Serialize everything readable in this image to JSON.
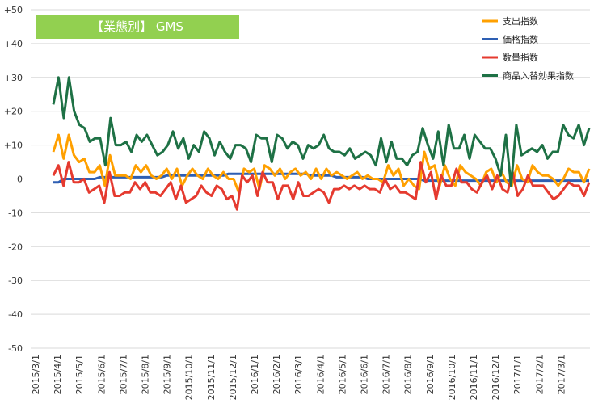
{
  "chart_data": {
    "type": "line",
    "title": "【業態別】 GMS",
    "ylim": [
      -50,
      50
    ],
    "y_ticks": [
      50,
      40,
      30,
      20,
      10,
      0,
      -10,
      -20,
      -30,
      -40,
      -50
    ],
    "y_tick_labels": [
      "+50",
      "+40",
      "+30",
      "+20",
      "+10",
      "0",
      "-10",
      "-20",
      "-30",
      "-40",
      "-50"
    ],
    "x_tick_labels": [
      "2015/3/1",
      "2015/4/1",
      "2015/5/1",
      "2015/6/1",
      "2015/7/1",
      "2015/8/1",
      "2015/9/1",
      "2015/10/1",
      "2015/11/1",
      "2015/12/1",
      "2016/1/1",
      "2016/2/1",
      "2016/3/1",
      "2016/4/1",
      "2016/5/1",
      "2016/6/1",
      "2016/7/1",
      "2016/8/1",
      "2016/9/1",
      "2016/10/1",
      "2016/11/1",
      "2016/12/1",
      "2017/1/1",
      "2017/2/1",
      "2017/3/1"
    ],
    "grid": true,
    "legend_position": "top-right",
    "series": [
      {
        "name": "支出指数",
        "color": "#ffa000",
        "values": [
          8,
          13,
          6,
          13,
          7,
          5,
          6,
          2,
          2,
          4,
          -2,
          7,
          1,
          1,
          1,
          0,
          4,
          2,
          4,
          1,
          0,
          1,
          3,
          0,
          3,
          -2,
          1,
          3,
          1,
          0,
          3,
          1,
          0,
          2,
          0,
          0,
          -4,
          3,
          2,
          3,
          -3,
          4,
          3,
          1,
          3,
          0,
          2,
          3,
          1,
          2,
          0,
          3,
          0,
          3,
          1,
          2,
          1,
          0,
          1,
          2,
          0,
          1,
          0,
          0,
          -1,
          4,
          1,
          3,
          -2,
          0,
          -2,
          -3,
          8,
          3,
          4,
          -2,
          4,
          0,
          -2,
          4,
          2,
          1,
          0,
          -2,
          2,
          3,
          -1,
          2,
          -1,
          -2,
          4,
          0,
          -1,
          4,
          2,
          1,
          1,
          0,
          -2,
          0,
          3,
          2,
          2,
          -1,
          3
        ]
      },
      {
        "name": "価格指数",
        "color": "#2e5fb3",
        "values": [
          -1,
          -1,
          0,
          0,
          0,
          0,
          0,
          0,
          0,
          0.5,
          0.5,
          0.5,
          0.5,
          0.5,
          0.5,
          0.5,
          0.5,
          0.5,
          0.5,
          0.5,
          0.5,
          0.5,
          1,
          1,
          1,
          1,
          1,
          1,
          1,
          1,
          1,
          1,
          1,
          1,
          1.5,
          1.5,
          1.5,
          1.5,
          1.5,
          1.5,
          1.5,
          1.5,
          1.5,
          1.5,
          1.5,
          1.5,
          1.5,
          1.5,
          1.5,
          1.5,
          1,
          1,
          1,
          1,
          1,
          0.5,
          0.5,
          0.5,
          0.5,
          0.5,
          0.5,
          0,
          0,
          0,
          0,
          0,
          0,
          0,
          0,
          0,
          0,
          0,
          -0.5,
          -0.5,
          -0.5,
          -0.5,
          -0.5,
          -0.5,
          -0.5,
          -0.5,
          -0.5,
          -0.5,
          -0.5,
          -0.5,
          -0.5,
          -0.5,
          -0.5,
          -0.5,
          -0.5,
          -0.5,
          -0.5,
          -0.5,
          -0.5,
          -0.5,
          -0.5,
          -0.5,
          -0.5,
          -0.5,
          -0.5,
          -0.5,
          -0.5,
          -0.5,
          -0.5,
          -0.5,
          -0.5
        ]
      },
      {
        "name": "数量指数",
        "color": "#e53a2f",
        "values": [
          1,
          4,
          -2,
          5,
          -1,
          -1,
          0,
          -4,
          -3,
          -2,
          -7,
          2,
          -5,
          -5,
          -4,
          -4,
          -1,
          -3,
          -1,
          -4,
          -4,
          -5,
          -3,
          -1,
          -6,
          -2,
          -7,
          -6,
          -5,
          -2,
          -4,
          -5,
          -2,
          -3,
          -6,
          -5,
          -9,
          1,
          -1,
          1,
          -5,
          2,
          -1,
          -1,
          -6,
          -2,
          -2,
          -6,
          -1,
          -5,
          -5,
          -4,
          -3,
          -4,
          -7,
          -3,
          -3,
          -2,
          -3,
          -2,
          -3,
          -2,
          -3,
          -3,
          -4,
          0,
          -3,
          -2,
          -4,
          -4,
          -5,
          -6,
          5,
          -1,
          2,
          -6,
          1,
          -2,
          -2,
          3,
          -1,
          -1,
          -3,
          -4,
          -1,
          1,
          -3,
          1,
          -3,
          -4,
          2,
          -5,
          -3,
          1,
          -2,
          -2,
          -2,
          -4,
          -6,
          -5,
          -3,
          -1,
          -2,
          -2,
          -5,
          -1
        ]
      },
      {
        "name": "商品入替効果指数",
        "color": "#1e7145",
        "values": [
          22,
          30,
          18,
          30,
          20,
          16,
          15,
          11,
          12,
          12,
          4,
          18,
          10,
          10,
          11,
          8,
          13,
          11,
          13,
          10,
          7,
          8,
          10,
          14,
          9,
          12,
          6,
          10,
          8,
          14,
          12,
          7,
          11,
          8,
          6,
          10,
          10,
          9,
          5,
          13,
          12,
          12,
          5,
          13,
          12,
          9,
          11,
          10,
          6,
          10,
          9,
          10,
          13,
          9,
          8,
          8,
          7,
          9,
          6,
          7,
          8,
          7,
          4,
          12,
          5,
          11,
          6,
          6,
          4,
          7,
          8,
          15,
          10,
          6,
          14,
          4,
          16,
          9,
          9,
          13,
          6,
          13,
          11,
          9,
          9,
          6,
          1,
          13,
          -2,
          16,
          7,
          8,
          9,
          8,
          10,
          6,
          8,
          8,
          16,
          13,
          12,
          16,
          10,
          15
        ]
      }
    ]
  }
}
